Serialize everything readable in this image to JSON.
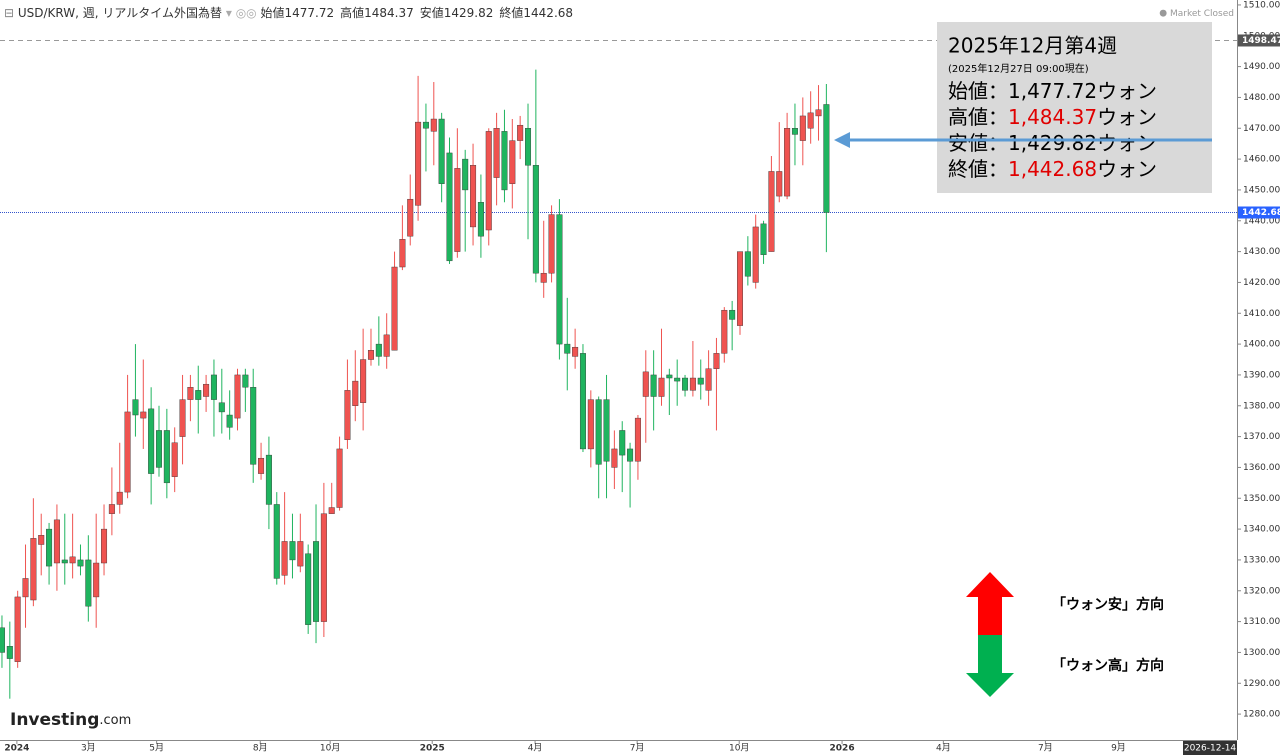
{
  "chart_data": {
    "type": "candlestick",
    "header": {
      "symbol": "USD/KRW, 週, リアルタイム外国為替",
      "items": [
        {
          "label": "始値",
          "value": 1477.72
        },
        {
          "label": "高値",
          "value": 1484.37
        },
        {
          "label": "安値",
          "value": 1429.82
        },
        {
          "label": "終値",
          "value": 1442.68
        }
      ]
    },
    "status": "Market Closed",
    "logo": {
      "main": "Investing",
      "suffix": ".com"
    },
    "up_color": "#ef5350",
    "down_color": "#1fb45f",
    "open": [
      1308,
      1302,
      1297,
      1318,
      1317,
      1335,
      1340,
      1329,
      1330,
      1329,
      1330,
      1330,
      1318,
      1329,
      1345,
      1348,
      1352,
      1382,
      1376,
      1379,
      1372,
      1372,
      1357,
      1370,
      1382,
      1385,
      1383,
      1390,
      1381,
      1377,
      1376,
      1390,
      1386,
      1358,
      1364,
      1348,
      1325,
      1336,
      1328,
      1332,
      1336,
      1310,
      1345,
      1347,
      1369,
      1380,
      1381,
      1395,
      1400,
      1396,
      1398,
      1425,
      1435,
      1445,
      1472,
      1469,
      1473,
      1462,
      1430,
      1460,
      1438,
      1446,
      1437,
      1454,
      1469,
      1452,
      1466,
      1470,
      1458,
      1420,
      1423,
      1442,
      1400,
      1396,
      1397,
      1366,
      1382,
      1382,
      1360,
      1372,
      1366,
      1362,
      1383,
      1390,
      1383,
      1390,
      1389,
      1389,
      1385,
      1389,
      1385,
      1392,
      1397,
      1411,
      1406,
      1430,
      1420,
      1439,
      1430,
      1448,
      1448,
      1470,
      1466,
      1470,
      1474,
      1477.72
    ],
    "high": [
      1312,
      1310,
      1320,
      1335,
      1350,
      1345,
      1342,
      1348,
      1345,
      1345,
      1335,
      1338,
      1345,
      1348,
      1360,
      1368,
      1390,
      1400,
      1395,
      1386,
      1380,
      1379,
      1373,
      1390,
      1390,
      1393,
      1390,
      1395,
      1392,
      1385,
      1392,
      1392,
      1392,
      1368,
      1370,
      1352,
      1352,
      1345,
      1345,
      1335,
      1348,
      1355,
      1355,
      1370,
      1395,
      1398,
      1405,
      1405,
      1409,
      1410,
      1430,
      1445,
      1455,
      1487,
      1478,
      1485,
      1475,
      1467,
      1470,
      1463,
      1465,
      1455,
      1470,
      1475,
      1476,
      1473,
      1474,
      1478,
      1489,
      1440,
      1445,
      1447,
      1415,
      1405,
      1400,
      1385,
      1383,
      1390,
      1372,
      1375,
      1368,
      1377,
      1398,
      1398,
      1405,
      1392,
      1395,
      1390,
      1401,
      1395,
      1398,
      1402,
      1412,
      1414,
      1430,
      1435,
      1442,
      1440,
      1461,
      1472,
      1475,
      1478,
      1480,
      1482,
      1484,
      1484.37
    ],
    "low": [
      1295,
      1285,
      1295,
      1308,
      1315,
      1325,
      1322,
      1320,
      1322,
      1324,
      1325,
      1310,
      1308,
      1325,
      1338,
      1345,
      1350,
      1370,
      1366,
      1348,
      1357,
      1350,
      1352,
      1361,
      1375,
      1371,
      1378,
      1370,
      1371,
      1369,
      1372,
      1378,
      1355,
      1356,
      1340,
      1322,
      1322,
      1324,
      1326,
      1306,
      1303,
      1305,
      1345,
      1346,
      1366,
      1375,
      1372,
      1393,
      1393,
      1392,
      1398,
      1424,
      1432,
      1440,
      1456,
      1458,
      1446,
      1426,
      1428,
      1430,
      1432,
      1428,
      1432,
      1445,
      1446,
      1444,
      1460,
      1434,
      1420,
      1415,
      1420,
      1395,
      1385,
      1392,
      1365,
      1360,
      1350,
      1350,
      1353,
      1352,
      1347,
      1356,
      1368,
      1372,
      1380,
      1377,
      1380,
      1383,
      1383,
      1382,
      1380,
      1372,
      1394,
      1398,
      1403,
      1419,
      1418,
      1426,
      1430,
      1446,
      1447,
      1458,
      1458,
      1465,
      1466,
      1429.82
    ],
    "close": [
      1300,
      1298,
      1318,
      1324,
      1337,
      1338,
      1328,
      1343,
      1329,
      1331,
      1328,
      1315,
      1329,
      1340,
      1348,
      1352,
      1378,
      1377,
      1378,
      1358,
      1360,
      1355,
      1368,
      1382,
      1386,
      1382,
      1387,
      1382,
      1378,
      1373,
      1390,
      1386,
      1361,
      1363,
      1348,
      1324,
      1336,
      1330,
      1336,
      1309,
      1310,
      1345,
      1347,
      1366,
      1385,
      1388,
      1395,
      1398,
      1396,
      1403,
      1425,
      1434,
      1447,
      1472,
      1470,
      1473,
      1452,
      1427,
      1457,
      1450,
      1458,
      1435,
      1469,
      1470,
      1450,
      1466,
      1471,
      1458,
      1423,
      1423,
      1442,
      1400,
      1397,
      1399,
      1366,
      1382,
      1361,
      1362,
      1366,
      1364,
      1362,
      1376,
      1391,
      1383,
      1389,
      1389,
      1388,
      1385,
      1389,
      1387,
      1392,
      1397,
      1411,
      1408,
      1430,
      1422,
      1438,
      1429,
      1456,
      1456,
      1470,
      1468,
      1474,
      1475,
      1476,
      1442.68
    ],
    "ylim": [
      1271.6,
      1511.6
    ],
    "yticks": [
      {
        "value": 1280,
        "label": "1280.00"
      },
      {
        "value": 1290,
        "label": "1290.00"
      },
      {
        "value": 1300,
        "label": "1300.00"
      },
      {
        "value": 1310,
        "label": "1310.00"
      },
      {
        "value": 1320,
        "label": "1320.00"
      },
      {
        "value": 1330,
        "label": "1330.00"
      },
      {
        "value": 1340,
        "label": "1340.00"
      },
      {
        "value": 1350,
        "label": "1350.00"
      },
      {
        "value": 1360,
        "label": "1360.00"
      },
      {
        "value": 1370,
        "label": "1370.00"
      },
      {
        "value": 1380,
        "label": "1380.00"
      },
      {
        "value": 1390,
        "label": "1390.00"
      },
      {
        "value": 1400,
        "label": "1400.00"
      },
      {
        "value": 1410,
        "label": "1410.00"
      },
      {
        "value": 1420,
        "label": "1420.00"
      },
      {
        "value": 1430,
        "label": "1430.00"
      },
      {
        "value": 1440,
        "label": "1440.00"
      },
      {
        "value": 1450,
        "label": "1450.00"
      },
      {
        "value": 1460,
        "label": "1460.00"
      },
      {
        "value": 1470,
        "label": "1470.00"
      },
      {
        "value": 1480,
        "label": "1480.00"
      },
      {
        "value": 1490,
        "label": "1490.00"
      },
      {
        "value": 1500,
        "label": "1500.00"
      },
      {
        "value": 1510,
        "label": "1510.00"
      }
    ],
    "high_line": {
      "value": 1498.47,
      "label": "1498.47"
    },
    "last_line": {
      "value": 1442.68,
      "label": "1442.68"
    },
    "xlim": [
      -0.25,
      157.3
    ],
    "xticks": [
      {
        "value": 1.9,
        "label": "2024"
      },
      {
        "value": 11,
        "label": "3月"
      },
      {
        "value": 19.7,
        "label": "5月"
      },
      {
        "value": 32.9,
        "label": "8月"
      },
      {
        "value": 41.8,
        "label": "10月"
      },
      {
        "value": 54.8,
        "label": "2025"
      },
      {
        "value": 67.9,
        "label": "4月"
      },
      {
        "value": 80.9,
        "label": "7月"
      },
      {
        "value": 93.9,
        "label": "10月"
      },
      {
        "value": 107,
        "label": "2026"
      },
      {
        "value": 119.9,
        "label": "4月"
      },
      {
        "value": 132.9,
        "label": "7月"
      },
      {
        "value": 142.2,
        "label": "9月"
      }
    ],
    "cursor_date": "2026-12-14",
    "info_box": {
      "title": "2025年12月第4週",
      "subtitle": "(2025年12月27日 09:00現在)",
      "rows": [
        {
          "label": "始値：",
          "value": 1477.72,
          "value_label": "1,477.72",
          "unit": "ウォン",
          "color": "#000000"
        },
        {
          "label": "高値：",
          "value": 1484.37,
          "value_label": "1,484.37",
          "unit": "ウォン",
          "color": "#e00000"
        },
        {
          "label": "安値：",
          "value": 1429.82,
          "value_label": "1,429.82",
          "unit": "ウォン",
          "color": "#000000"
        },
        {
          "label": "終値：",
          "value": 1442.68,
          "value_label": "1,442.68",
          "unit": "ウォン",
          "color": "#e00000"
        }
      ]
    },
    "direction_up": "「ウォン安」方向",
    "direction_down": "「ウォン高」方向"
  }
}
